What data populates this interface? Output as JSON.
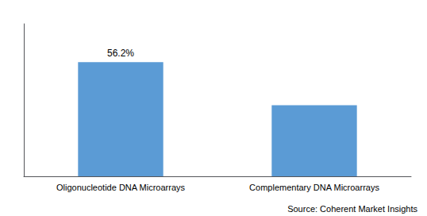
{
  "chart_data": {
    "type": "bar",
    "categories": [
      "Oligonucleotide DNA Microarrays",
      "Complementary DNA Microarrays"
    ],
    "values": [
      56.2,
      35.0
    ],
    "value_labels": [
      "56.2%",
      null
    ],
    "color": "#5b9bd5",
    "ylim": [
      0,
      75
    ],
    "tick_labels": "x",
    "grid": false,
    "annotations": [
      "Source: Coherent Market Insights"
    ]
  }
}
